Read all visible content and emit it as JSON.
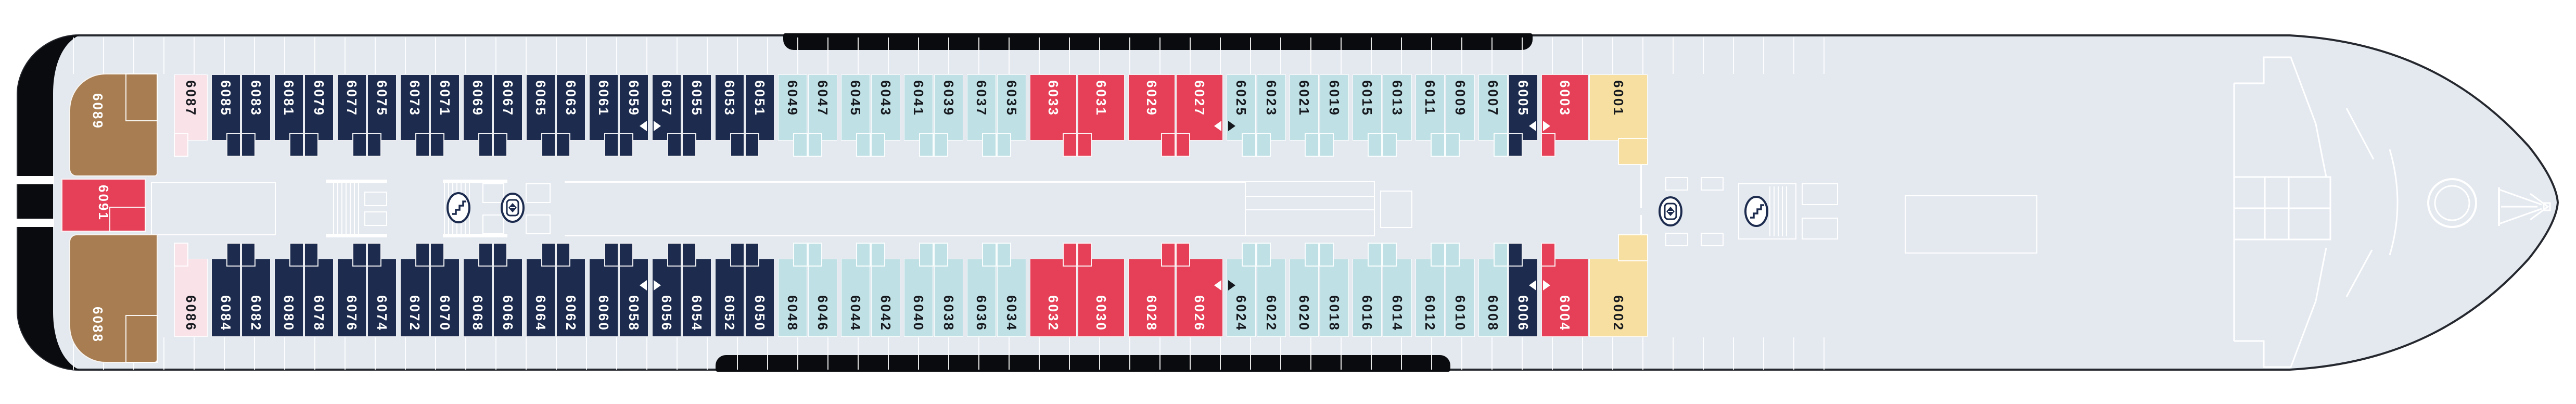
{
  "plan": {
    "kind": "cruise-ship-deck-plan",
    "deck_number_series": "6000",
    "colors": {
      "cabin_navy": "#1d2c4e",
      "cabin_aqua": "#bfe0e5",
      "cabin_red": "#e54057",
      "cabin_pink": "#f9e3e9",
      "cabin_yellow": "#f6dfa0",
      "cabin_brown": "#a87d51",
      "deck_fill": "#e4e9f0",
      "hull_outline": "#25282e",
      "lifeboat_black": "#0a0b0e",
      "corridor_lines": "#ffffff"
    }
  },
  "cabins": {
    "specials": {
      "aft_suite_top": {
        "n": "6089"
      },
      "aft_suite_bottom": {
        "n": "6088"
      },
      "stern_cabin": {
        "n": "6091"
      }
    },
    "top": [
      {
        "n": "6087",
        "c": "pink",
        "alc": "l",
        "gap": true
      },
      {
        "n": "6085",
        "c": "navy",
        "alc": "r"
      },
      {
        "n": "6083",
        "c": "navy",
        "alc": "l",
        "gap": true
      },
      {
        "n": "6081",
        "c": "navy",
        "alc": "r"
      },
      {
        "n": "6079",
        "c": "navy",
        "alc": "l",
        "gap": true
      },
      {
        "n": "6077",
        "c": "navy",
        "alc": "r"
      },
      {
        "n": "6075",
        "c": "navy",
        "alc": "l",
        "gap": true
      },
      {
        "n": "6073",
        "c": "navy",
        "alc": "r"
      },
      {
        "n": "6071",
        "c": "navy",
        "alc": "l",
        "gap": true
      },
      {
        "n": "6069",
        "c": "navy",
        "alc": "r"
      },
      {
        "n": "6067",
        "c": "navy",
        "alc": "l",
        "gap": true
      },
      {
        "n": "6065",
        "c": "navy",
        "alc": "r"
      },
      {
        "n": "6063",
        "c": "navy",
        "alc": "l",
        "gap": true
      },
      {
        "n": "6061",
        "c": "navy",
        "alc": "r"
      },
      {
        "n": "6059",
        "c": "navy",
        "alc": "l",
        "gap": true,
        "tri": "l"
      },
      {
        "n": "6057",
        "c": "navy",
        "alc": "r",
        "tri": "r"
      },
      {
        "n": "6055",
        "c": "navy",
        "alc": "l",
        "gap": true
      },
      {
        "n": "6053",
        "c": "navy",
        "alc": "r"
      },
      {
        "n": "6051",
        "c": "navy",
        "alc": "l",
        "gap": true
      },
      {
        "n": "6049",
        "c": "aqua",
        "alc": "r"
      },
      {
        "n": "6047",
        "c": "aqua",
        "alc": "l",
        "gap": true
      },
      {
        "n": "6045",
        "c": "aqua",
        "alc": "r"
      },
      {
        "n": "6043",
        "c": "aqua",
        "alc": "l",
        "gap": true
      },
      {
        "n": "6041",
        "c": "aqua",
        "alc": "r"
      },
      {
        "n": "6039",
        "c": "aqua",
        "alc": "l",
        "gap": true
      },
      {
        "n": "6037",
        "c": "aqua",
        "alc": "r"
      },
      {
        "n": "6035",
        "c": "aqua",
        "alc": "l",
        "gap": true
      },
      {
        "n": "6033",
        "c": "red",
        "alc": "r"
      },
      {
        "n": "6031",
        "c": "red",
        "alc": "l",
        "gap": true
      },
      {
        "n": "6029",
        "c": "red",
        "alc": "r"
      },
      {
        "n": "6027",
        "c": "red",
        "alc": "l",
        "gap": true,
        "tri": "l"
      },
      {
        "n": "6025",
        "c": "aqua",
        "alc": "r",
        "tri": "r"
      },
      {
        "n": "6023",
        "c": "aqua",
        "alc": "l",
        "gap": true
      },
      {
        "n": "6021",
        "c": "aqua",
        "alc": "r"
      },
      {
        "n": "6019",
        "c": "aqua",
        "alc": "l",
        "gap": true
      },
      {
        "n": "6015",
        "c": "aqua",
        "alc": "r"
      },
      {
        "n": "6013",
        "c": "aqua",
        "alc": "l",
        "gap": true
      },
      {
        "n": "6011",
        "c": "aqua",
        "alc": "r"
      },
      {
        "n": "6009",
        "c": "aqua",
        "alc": "l",
        "gap": true
      },
      {
        "n": "6007",
        "c": "aqua",
        "alc": "r"
      },
      {
        "n": "6005",
        "c": "navy",
        "alc": "l",
        "gap": true,
        "tri": "l"
      },
      {
        "n": "6003",
        "c": "red",
        "alc": "l",
        "tri": "r"
      },
      {
        "n": "6001",
        "c": "yellow",
        "ext": true
      }
    ],
    "bottom": [
      {
        "n": "6086",
        "c": "pink",
        "alc": "l",
        "gap": true
      },
      {
        "n": "6084",
        "c": "navy",
        "alc": "r"
      },
      {
        "n": "6082",
        "c": "navy",
        "alc": "l",
        "gap": true
      },
      {
        "n": "6080",
        "c": "navy",
        "alc": "r"
      },
      {
        "n": "6078",
        "c": "navy",
        "alc": "l",
        "gap": true
      },
      {
        "n": "6076",
        "c": "navy",
        "alc": "r"
      },
      {
        "n": "6074",
        "c": "navy",
        "alc": "l",
        "gap": true
      },
      {
        "n": "6072",
        "c": "navy",
        "alc": "r"
      },
      {
        "n": "6070",
        "c": "navy",
        "alc": "l",
        "gap": true
      },
      {
        "n": "6068",
        "c": "navy",
        "alc": "r"
      },
      {
        "n": "6066",
        "c": "navy",
        "alc": "l",
        "gap": true
      },
      {
        "n": "6064",
        "c": "navy",
        "alc": "r"
      },
      {
        "n": "6062",
        "c": "navy",
        "alc": "l",
        "gap": true
      },
      {
        "n": "6060",
        "c": "navy",
        "alc": "r"
      },
      {
        "n": "6058",
        "c": "navy",
        "alc": "l",
        "gap": true,
        "tri": "l"
      },
      {
        "n": "6056",
        "c": "navy",
        "alc": "r",
        "tri": "r"
      },
      {
        "n": "6054",
        "c": "navy",
        "alc": "l",
        "gap": true
      },
      {
        "n": "6052",
        "c": "navy",
        "alc": "r"
      },
      {
        "n": "6050",
        "c": "navy",
        "alc": "l",
        "gap": true
      },
      {
        "n": "6048",
        "c": "aqua",
        "alc": "r"
      },
      {
        "n": "6046",
        "c": "aqua",
        "alc": "l",
        "gap": true
      },
      {
        "n": "6044",
        "c": "aqua",
        "alc": "r"
      },
      {
        "n": "6042",
        "c": "aqua",
        "alc": "l",
        "gap": true
      },
      {
        "n": "6040",
        "c": "aqua",
        "alc": "r"
      },
      {
        "n": "6038",
        "c": "aqua",
        "alc": "l",
        "gap": true
      },
      {
        "n": "6036",
        "c": "aqua",
        "alc": "r"
      },
      {
        "n": "6034",
        "c": "aqua",
        "alc": "l",
        "gap": true
      },
      {
        "n": "6032",
        "c": "red",
        "alc": "r"
      },
      {
        "n": "6030",
        "c": "red",
        "alc": "l",
        "gap": true
      },
      {
        "n": "6028",
        "c": "red",
        "alc": "r"
      },
      {
        "n": "6026",
        "c": "red",
        "alc": "l",
        "gap": true,
        "tri": "l"
      },
      {
        "n": "6024",
        "c": "aqua",
        "alc": "r",
        "tri": "r"
      },
      {
        "n": "6022",
        "c": "aqua",
        "alc": "l",
        "gap": true
      },
      {
        "n": "6020",
        "c": "aqua",
        "alc": "r"
      },
      {
        "n": "6018",
        "c": "aqua",
        "alc": "l",
        "gap": true
      },
      {
        "n": "6016",
        "c": "aqua",
        "alc": "r"
      },
      {
        "n": "6014",
        "c": "aqua",
        "alc": "l",
        "gap": true
      },
      {
        "n": "6012",
        "c": "aqua",
        "alc": "r"
      },
      {
        "n": "6010",
        "c": "aqua",
        "alc": "l",
        "gap": true
      },
      {
        "n": "6008",
        "c": "aqua",
        "alc": "r"
      },
      {
        "n": "6006",
        "c": "navy",
        "alc": "l",
        "gap": true,
        "tri": "l"
      },
      {
        "n": "6004",
        "c": "red",
        "alc": "l",
        "tri": "r"
      },
      {
        "n": "6002",
        "c": "yellow",
        "ext": true
      }
    ]
  },
  "symbols": {
    "stairs": "stairs-icon",
    "elevator": "elevator-icon",
    "connecting_marker_left": "triangle-left",
    "connecting_marker_right": "triangle-right"
  }
}
